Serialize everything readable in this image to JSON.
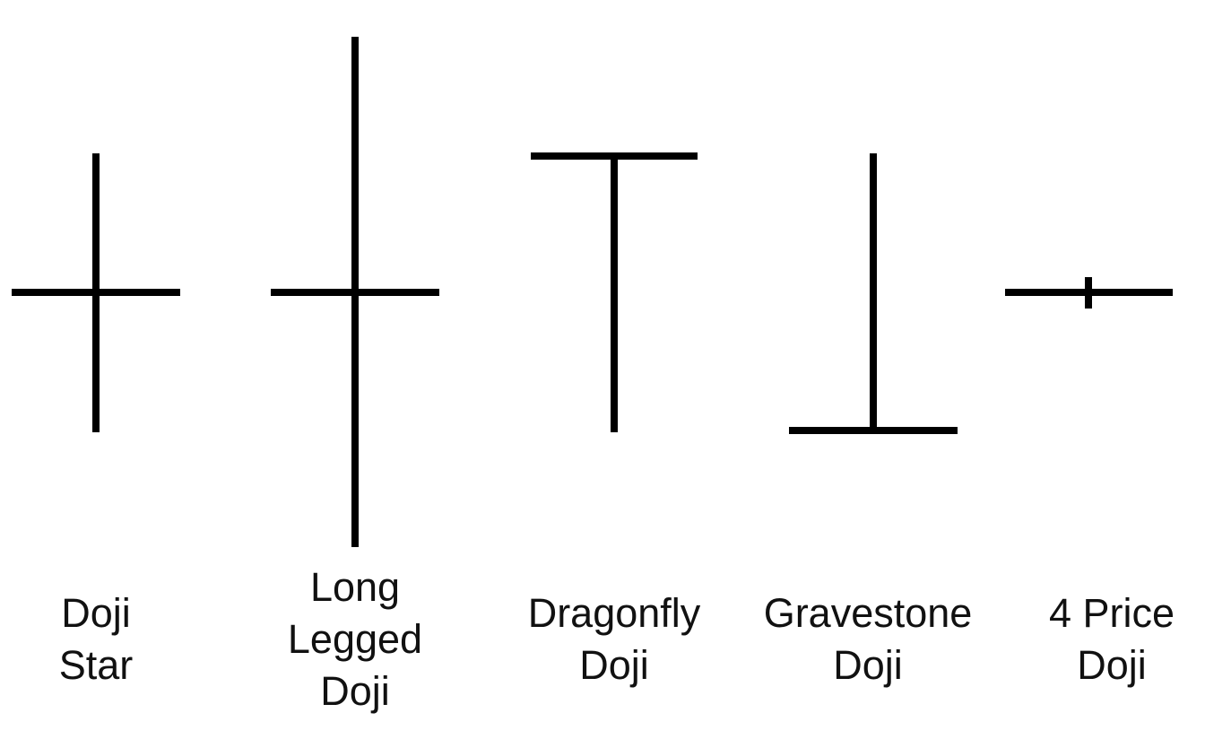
{
  "colors": {
    "background": "#ffffff",
    "stroke": "#000000",
    "text": "#111111"
  },
  "patterns": [
    {
      "id": "doji-star",
      "lines": [
        "Doji",
        "Star"
      ]
    },
    {
      "id": "long-legged-doji",
      "lines": [
        "Long",
        "Legged",
        "Doji"
      ]
    },
    {
      "id": "dragonfly-doji",
      "lines": [
        "Dragonfly",
        "Doji"
      ]
    },
    {
      "id": "gravestone-doji",
      "lines": [
        "Gravestone",
        "Doji"
      ]
    },
    {
      "id": "four-price-doji",
      "lines": [
        "4 Price",
        "Doji"
      ]
    }
  ]
}
